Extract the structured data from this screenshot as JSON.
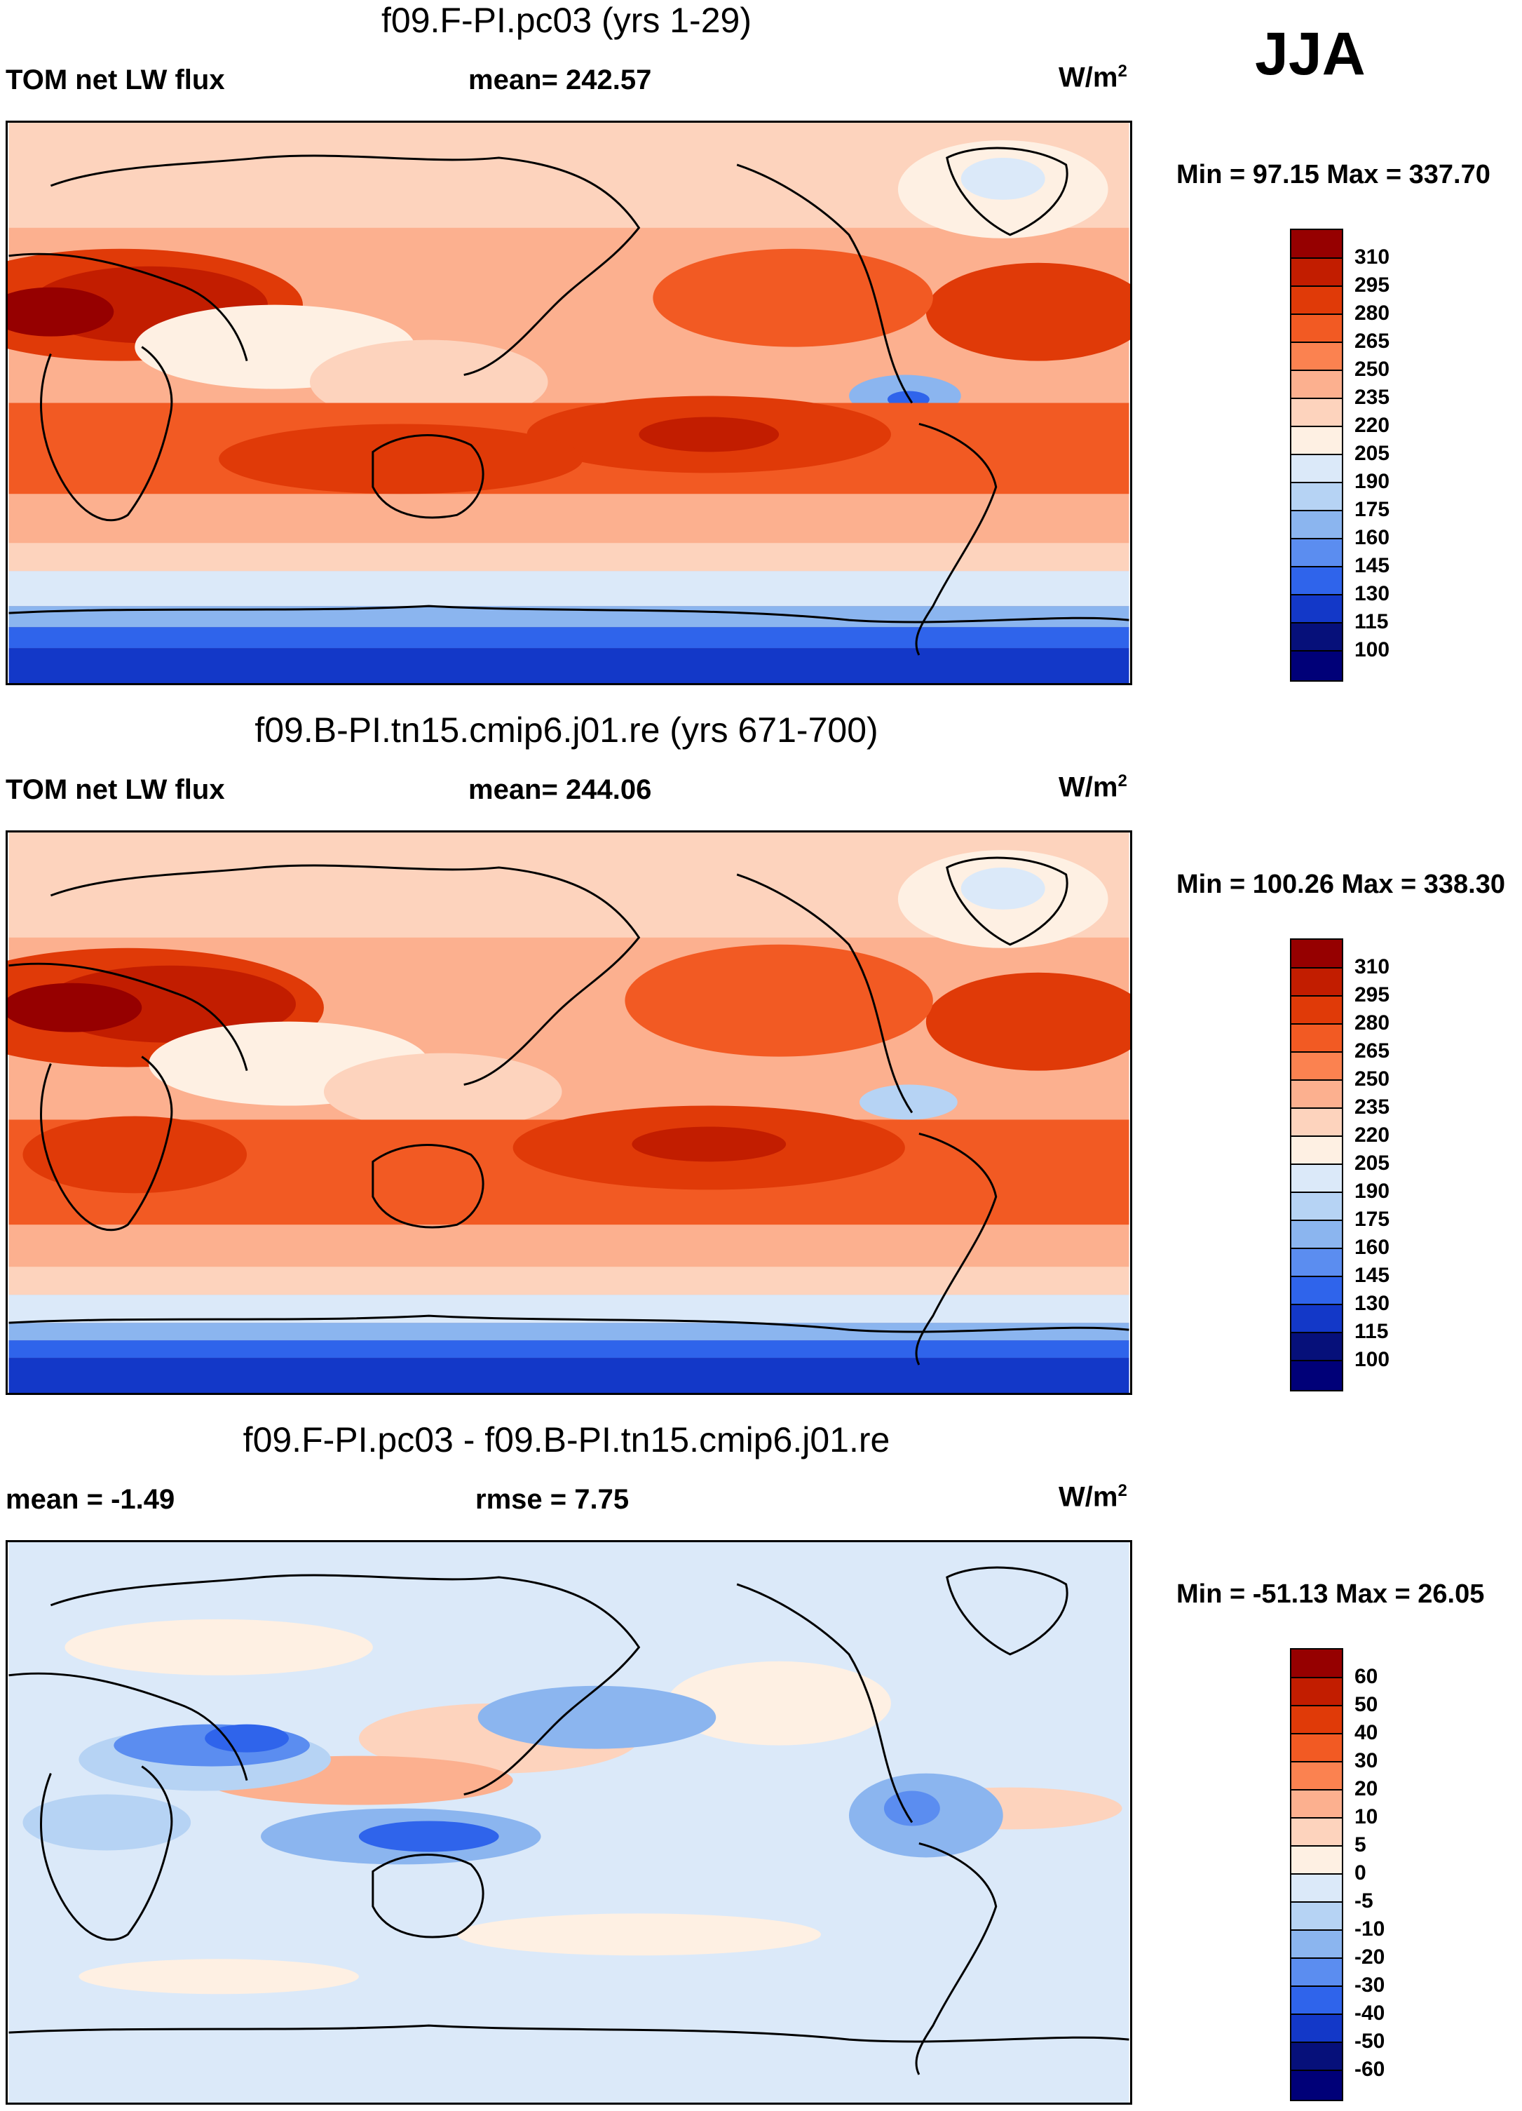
{
  "season": "JJA",
  "units_main": "W/m",
  "units_exp": "2",
  "panels": [
    {
      "title": "f09.F-PI.pc03 (yrs 1-29)",
      "left_label": "TOM net LW flux",
      "center_label": "mean= 242.57",
      "min_max": "Min =  97.15 Max = 337.70"
    },
    {
      "title": "f09.B-PI.tn15.cmip6.j01.re (yrs 671-700)",
      "left_label": "TOM net LW flux",
      "center_label": "mean= 244.06",
      "min_max": "Min = 100.26 Max = 338.30"
    },
    {
      "title": "f09.F-PI.pc03 - f09.B-PI.tn15.cmip6.j01.re",
      "left_label": "mean =  -1.49",
      "center_label": "rmse =   7.75",
      "min_max": "Min = -51.13 Max =  26.05"
    }
  ],
  "chart_data": [
    {
      "type": "heatmap",
      "title": "f09.F-PI.pc03 (yrs 1-29)",
      "variable": "TOM net LW flux",
      "units": "W/m2",
      "season": "JJA",
      "mean": 242.57,
      "min": 97.15,
      "max": 337.7,
      "colorbar_levels": [
        "310",
        "295",
        "280",
        "265",
        "250",
        "235",
        "220",
        "205",
        "190",
        "175",
        "160",
        "145",
        "130",
        "115",
        "100"
      ],
      "colors": [
        "#960000",
        "#c21d00",
        "#e03a08",
        "#f25a23",
        "#fb8250",
        "#fcb08f",
        "#fdd3bd",
        "#fef0e3",
        "#dbe9f9",
        "#b6d3f4",
        "#8bb5ef",
        "#5b8df0",
        "#2f64eb",
        "#1338c8",
        "#06107a",
        "#000078"
      ]
    },
    {
      "type": "heatmap",
      "title": "f09.B-PI.tn15.cmip6.j01.re (yrs 671-700)",
      "variable": "TOM net LW flux",
      "units": "W/m2",
      "season": "JJA",
      "mean": 244.06,
      "min": 100.26,
      "max": 338.3,
      "colorbar_levels": [
        "310",
        "295",
        "280",
        "265",
        "250",
        "235",
        "220",
        "205",
        "190",
        "175",
        "160",
        "145",
        "130",
        "115",
        "100"
      ],
      "colors": [
        "#960000",
        "#c21d00",
        "#e03a08",
        "#f25a23",
        "#fb8250",
        "#fcb08f",
        "#fdd3bd",
        "#fef0e3",
        "#dbe9f9",
        "#b6d3f4",
        "#8bb5ef",
        "#5b8df0",
        "#2f64eb",
        "#1338c8",
        "#06107a",
        "#000078"
      ]
    },
    {
      "type": "heatmap",
      "title": "f09.F-PI.pc03 - f09.B-PI.tn15.cmip6.j01.re",
      "variable": "difference",
      "units": "W/m2",
      "season": "JJA",
      "mean": -1.49,
      "rmse": 7.75,
      "min": -51.13,
      "max": 26.05,
      "colorbar_levels": [
        "60",
        "50",
        "40",
        "30",
        "20",
        "10",
        "5",
        "0",
        "-5",
        "-10",
        "-20",
        "-30",
        "-40",
        "-50",
        "-60"
      ],
      "colors": [
        "#960000",
        "#c21d00",
        "#e03a08",
        "#f25a23",
        "#fb8250",
        "#fcb08f",
        "#fdd3bd",
        "#fef0e3",
        "#dbe9f9",
        "#b6d3f4",
        "#8bb5ef",
        "#5b8df0",
        "#2f64eb",
        "#1338c8",
        "#06107a",
        "#000078"
      ]
    }
  ]
}
